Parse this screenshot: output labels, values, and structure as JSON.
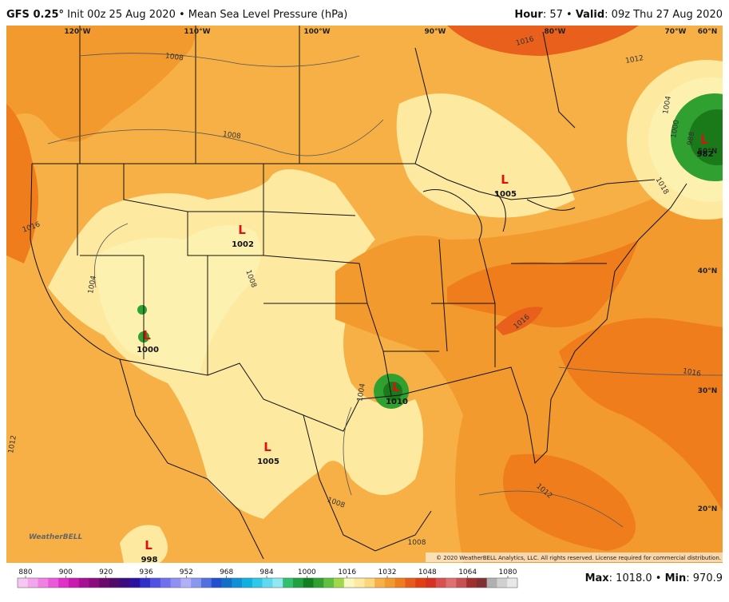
{
  "header": {
    "model": "GFS 0.25°",
    "init": " Init 00z 25 Aug 2020 • Mean Sea Level Pressure (hPa)",
    "hour_label": "Hour",
    "hour": ": 57 • ",
    "valid_label": "Valid",
    "valid": ": 09z Thu 27 Aug 2020"
  },
  "grid_labels": [
    "120°W",
    "110°W",
    "100°W",
    "90°W",
    "80°W",
    "70°W",
    "60°N",
    "50°N",
    "40°N",
    "30°N",
    "20°N"
  ],
  "isobar_labels": [
    "1008",
    "1008",
    "1016",
    "1012",
    "1004",
    "1000",
    "988",
    "1016",
    "1004",
    "1008",
    "1016",
    "1016",
    "1018",
    "1004",
    "1012",
    "1008",
    "1012",
    "1008"
  ],
  "lows": [
    {
      "symbol": "L",
      "pressure": "1002"
    },
    {
      "symbol": "L",
      "pressure": "1005"
    },
    {
      "symbol": "L",
      "pressure": "1000"
    },
    {
      "symbol": "L",
      "pressure": "998"
    },
    {
      "symbol": "L",
      "pressure": "1010"
    },
    {
      "symbol": "L",
      "pressure": "1005"
    },
    {
      "symbol": "L",
      "pressure": "982"
    }
  ],
  "logo": "WeatherBELL",
  "copyright": "© 2020 WeatherBELL Analytics, LLC. All rights reserved. License required for commercial distribution.",
  "colorbar": {
    "ticks": [
      880,
      900,
      920,
      936,
      952,
      968,
      984,
      1000,
      1016,
      1032,
      1048,
      1064,
      1080
    ],
    "colors": [
      "#f7c6f2",
      "#f4a6ec",
      "#f080e4",
      "#ea5ad8",
      "#e030c8",
      "#c81ab0",
      "#a81094",
      "#8a0c7e",
      "#6a0a6a",
      "#520a6a",
      "#3a0a80",
      "#2a10a0",
      "#3030c8",
      "#5050e0",
      "#7070ee",
      "#9090f4",
      "#b0b0f8",
      "#8898f0",
      "#5070e0",
      "#2050d0",
      "#1070c8",
      "#1090d8",
      "#10b0e0",
      "#30c8e8",
      "#60d8f0",
      "#90e8f4",
      "#30c070",
      "#20a040",
      "#108020",
      "#30a030",
      "#60c040",
      "#a0d848",
      "#f8f8c0",
      "#fde9a0",
      "#fcd67a",
      "#f7b045",
      "#f39a2e",
      "#ef7d1c",
      "#e85a1a",
      "#e04010",
      "#d83020",
      "#d85050",
      "#e07070",
      "#c85050",
      "#a03030",
      "#803030",
      "#b0b0b0",
      "#d0d0d0",
      "#e8e8e8"
    ]
  },
  "footer": {
    "max_label": "Max",
    "max": ": 1018.0 • ",
    "min_label": "Min",
    "min": ": 970.9"
  }
}
